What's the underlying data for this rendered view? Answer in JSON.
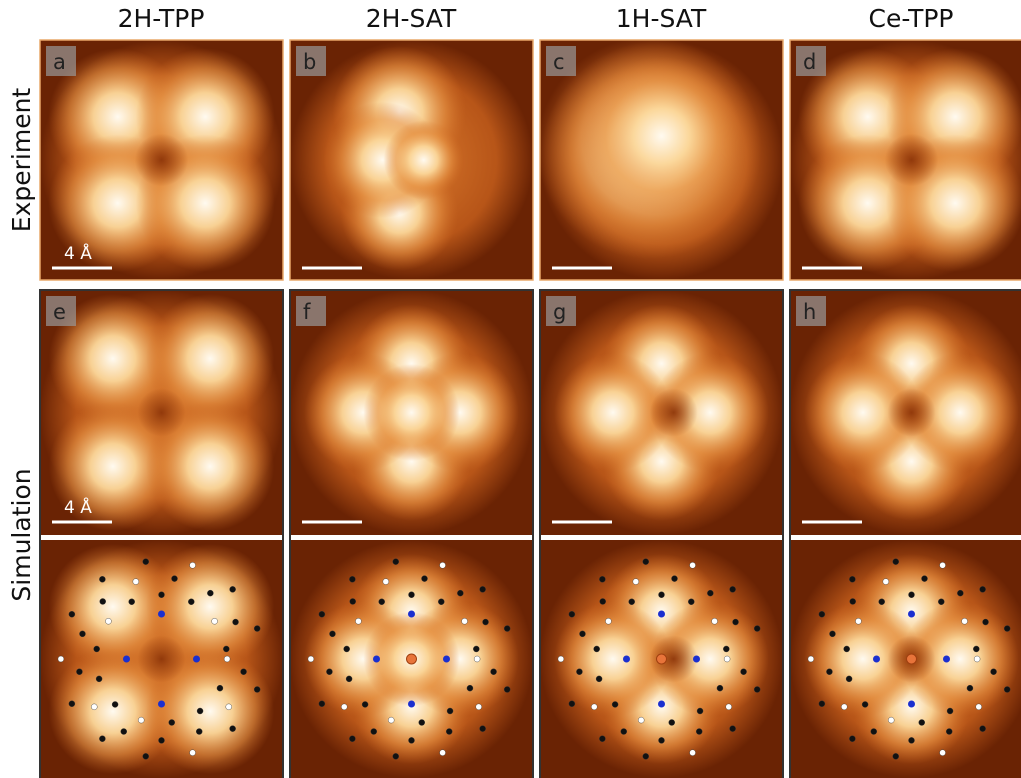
{
  "columns": [
    "2H-TPP",
    "2H-SAT",
    "1H-SAT",
    "Ce-TPP"
  ],
  "rows": [
    "Experiment",
    "Simulation"
  ],
  "panels": {
    "experiment": [
      "a",
      "b",
      "c",
      "d"
    ],
    "simulation": [
      "e",
      "f",
      "g",
      "h"
    ]
  },
  "scale_bar_labels": [
    "4 Å",
    "4 Å"
  ]
}
